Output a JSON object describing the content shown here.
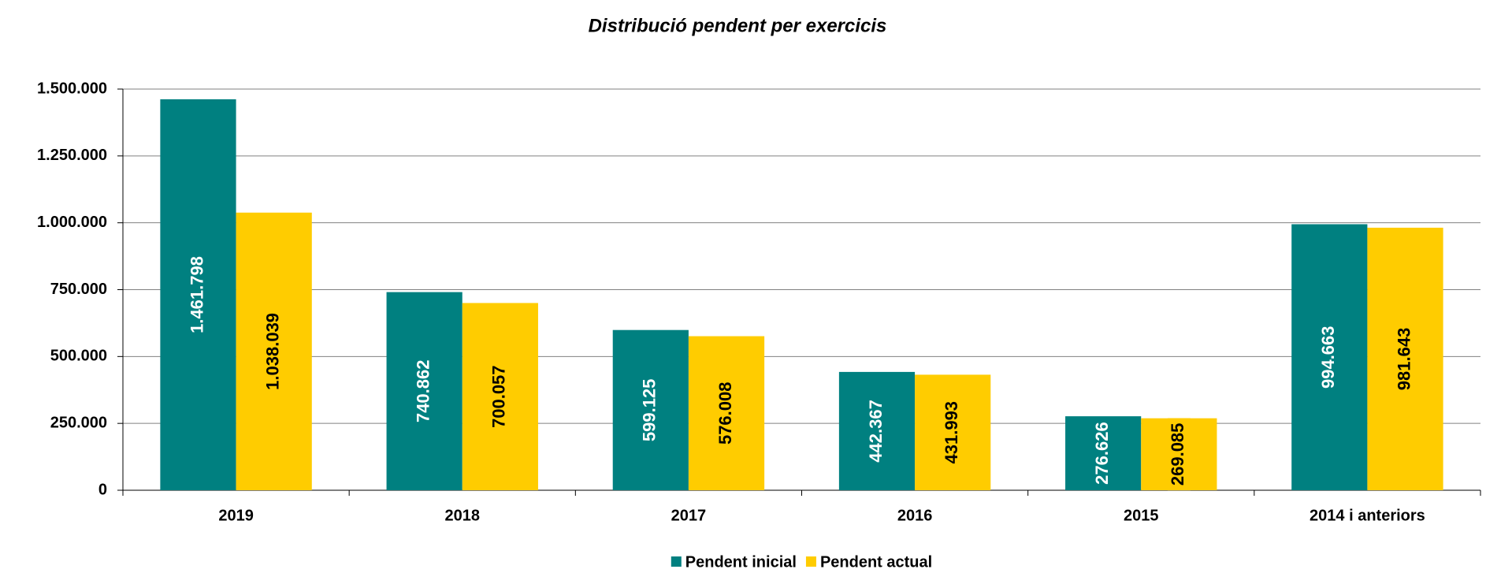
{
  "chart_data": {
    "type": "bar",
    "title": "Distribució pendent per exercicis",
    "categories": [
      "2019",
      "2018",
      "2017",
      "2016",
      "2015",
      "2014 i anteriors"
    ],
    "series": [
      {
        "name": "Pendent inicial",
        "color": "#008080",
        "values": [
          1461798,
          740862,
          599125,
          442367,
          276626,
          994663
        ],
        "value_labels": [
          "1.461.798",
          "740.862",
          "599.125",
          "442.367",
          "276.626",
          "994.663"
        ]
      },
      {
        "name": "Pendent actual",
        "color": "#ffcc00",
        "values": [
          1038039,
          700057,
          576008,
          431993,
          269085,
          981643
        ],
        "value_labels": [
          "1.038.039",
          "700.057",
          "576.008",
          "431.993",
          "269.085",
          "981.643"
        ]
      }
    ],
    "ylim": [
      0,
      1500000
    ],
    "yticks": [
      0,
      {
        "value": 250000,
        "label": "250.000"
      },
      {
        "value": 500000,
        "label": "500.000"
      },
      {
        "value": 750000,
        "label": "750.000"
      },
      {
        "value": 1000000,
        "label": "1.000.000"
      },
      {
        "value": 1250000,
        "label": "1.250.000"
      },
      {
        "value": 1500000,
        "label": "1.500.000"
      }
    ],
    "grid": true,
    "legend": "bottom"
  }
}
